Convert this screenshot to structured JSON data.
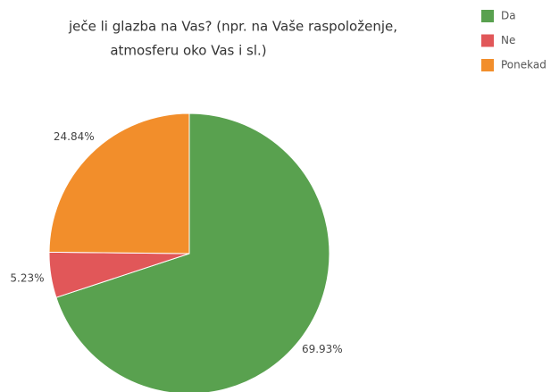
{
  "chart_data": {
    "type": "pie",
    "title": [
      "ječe li glazba na Vas? (npr. na Vaše raspoloženje,",
      "atmosferu oko Vas i sl.)"
    ],
    "categories": [
      "Da",
      "Ne",
      "Ponekad"
    ],
    "values": [
      69.93,
      5.23,
      24.84
    ],
    "value_labels": [
      "69.93%",
      "5.23%",
      "24.84%"
    ],
    "colors": [
      "#59a14f",
      "#e15759",
      "#f28e2b"
    ],
    "legend": "top-right"
  }
}
